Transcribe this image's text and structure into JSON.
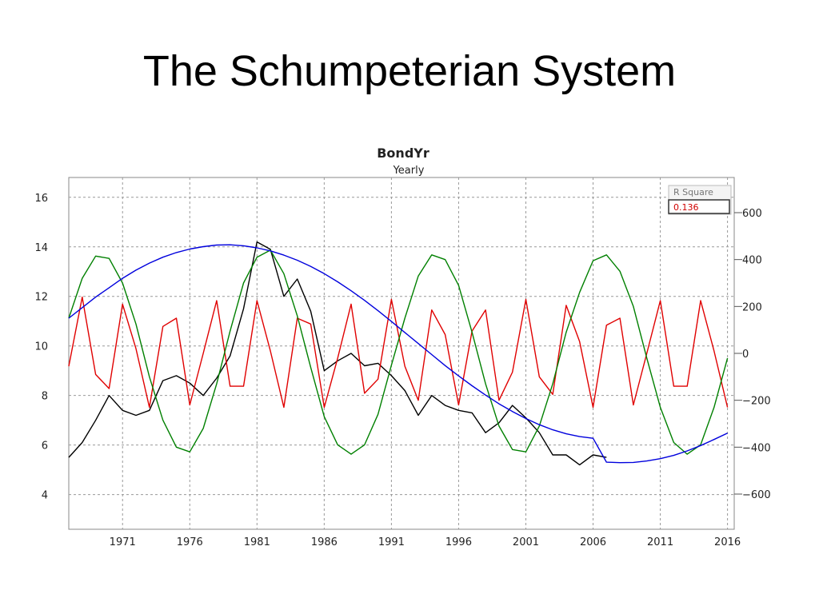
{
  "slide": {
    "title": "The Schumpeterian System"
  },
  "chart_data": {
    "type": "line",
    "title": "BondYr",
    "subtitle": "Yearly",
    "x_ticks": [
      1971,
      1976,
      1981,
      1986,
      1991,
      1996,
      2001,
      2006,
      2011,
      2016
    ],
    "xlim": [
      1967,
      2016.5
    ],
    "ylim_left": [
      2.6,
      16.8
    ],
    "y_ticks_left": [
      4,
      6,
      8,
      10,
      12,
      14,
      16
    ],
    "ylim_right": [
      -750,
      750
    ],
    "y_ticks_right": [
      -600,
      -400,
      -200,
      0,
      200,
      400,
      600
    ],
    "grid": true,
    "r_square": {
      "label": "R Square",
      "value": "0.136"
    },
    "series": [
      {
        "color": "#000000",
        "axis": "left",
        "x": [
          1967,
          1968,
          1969,
          1970,
          1971,
          1972,
          1973,
          1974,
          1975,
          1976,
          1977,
          1978,
          1979,
          1980,
          1981,
          1982,
          1983,
          1984,
          1985,
          1986,
          1987,
          1988,
          1989,
          1990,
          1991,
          1992,
          1993,
          1994,
          1995,
          1996,
          1997,
          1998,
          1999,
          2000,
          2001,
          2002,
          2003,
          2004,
          2005,
          2006,
          2007
        ],
        "y": [
          5.5,
          6.1,
          7.0,
          8.0,
          7.4,
          7.2,
          7.4,
          8.6,
          8.8,
          8.5,
          8.0,
          8.7,
          9.6,
          11.5,
          14.2,
          13.9,
          12.0,
          12.7,
          11.4,
          9.0,
          9.4,
          9.7,
          9.2,
          9.3,
          8.8,
          8.2,
          7.2,
          8.0,
          7.6,
          7.4,
          7.3,
          6.5,
          6.9,
          7.6,
          7.1,
          6.5,
          5.6,
          5.6,
          5.2,
          5.6,
          5.5
        ]
      },
      {
        "color": "#e00000",
        "axis": "right",
        "x": [
          1967,
          1968,
          1969,
          1970,
          1971,
          1972,
          1973,
          1974,
          1975,
          1976,
          1977,
          1978,
          1979,
          1980,
          1981,
          1982,
          1983,
          1984,
          1985,
          1986,
          1987,
          1988,
          1989,
          1990,
          1991,
          1992,
          1993,
          1994,
          1995,
          1996,
          1997,
          1998,
          1999,
          2000,
          2001,
          2002,
          2003,
          2004,
          2005,
          2006,
          2007,
          2008,
          2009,
          2010,
          2011,
          2012,
          2013,
          2014,
          2015,
          2016
        ],
        "y": [
          -55,
          240,
          -90,
          -150,
          210,
          20,
          -230,
          115,
          150,
          -220,
          0,
          225,
          -140,
          -140,
          225,
          10,
          -230,
          150,
          125,
          -230,
          -20,
          210,
          -170,
          -110,
          230,
          -55,
          -200,
          185,
          80,
          -220,
          95,
          185,
          -200,
          -80,
          230,
          -100,
          -175,
          205,
          50,
          -230,
          120,
          150,
          -220,
          0,
          225,
          -140,
          -140,
          225,
          10,
          -230
        ]
      },
      {
        "color": "#008000",
        "axis": "right",
        "x": [
          1967,
          1968,
          1969,
          1970,
          1971,
          1972,
          1973,
          1974,
          1975,
          1976,
          1977,
          1978,
          1979,
          1980,
          1981,
          1982,
          1983,
          1984,
          1985,
          1986,
          1987,
          1988,
          1989,
          1990,
          1991,
          1992,
          1993,
          1994,
          1995,
          1996,
          1997,
          1998,
          1999,
          2000,
          2001,
          2002,
          2003,
          2004,
          2005,
          2006,
          2007,
          2008,
          2009,
          2010,
          2011,
          2012,
          2013,
          2014,
          2015,
          2016
        ],
        "y": [
          150,
          320,
          415,
          405,
          300,
          125,
          -100,
          -285,
          -400,
          -420,
          -320,
          -130,
          95,
          300,
          410,
          440,
          340,
          160,
          -60,
          -270,
          -390,
          -430,
          -390,
          -260,
          -50,
          150,
          330,
          420,
          400,
          290,
          90,
          -130,
          -310,
          -410,
          -420,
          -310,
          -130,
          90,
          260,
          395,
          420,
          350,
          200,
          -20,
          -230,
          -380,
          -430,
          -390,
          -230,
          -20
        ]
      },
      {
        "color": "#0000dd",
        "axis": "right",
        "x": [
          1967,
          1968,
          1969,
          1970,
          1971,
          1972,
          1973,
          1974,
          1975,
          1976,
          1977,
          1978,
          1979,
          1980,
          1981,
          1982,
          1983,
          1984,
          1985,
          1986,
          1987,
          1988,
          1989,
          1990,
          1991,
          1992,
          1993,
          1994,
          1995,
          1996,
          1997,
          1998,
          1999,
          2000,
          2001,
          2002,
          2003,
          2004,
          2005,
          2006,
          2007,
          2008,
          2009,
          2010,
          2011,
          2012,
          2013,
          2014,
          2015,
          2016
        ],
        "y": [
          150,
          195,
          240,
          280,
          320,
          355,
          385,
          410,
          430,
          445,
          455,
          462,
          463,
          459,
          450,
          437,
          419,
          397,
          371,
          340,
          305,
          267,
          226,
          182,
          136,
          89,
          42,
          -5,
          -52,
          -96,
          -138,
          -178,
          -215,
          -248,
          -278,
          -304,
          -326,
          -343,
          -355,
          -362,
          -464,
          -466,
          -465,
          -459,
          -449,
          -435,
          -416,
          -393,
          -367,
          -340
        ]
      }
    ]
  }
}
